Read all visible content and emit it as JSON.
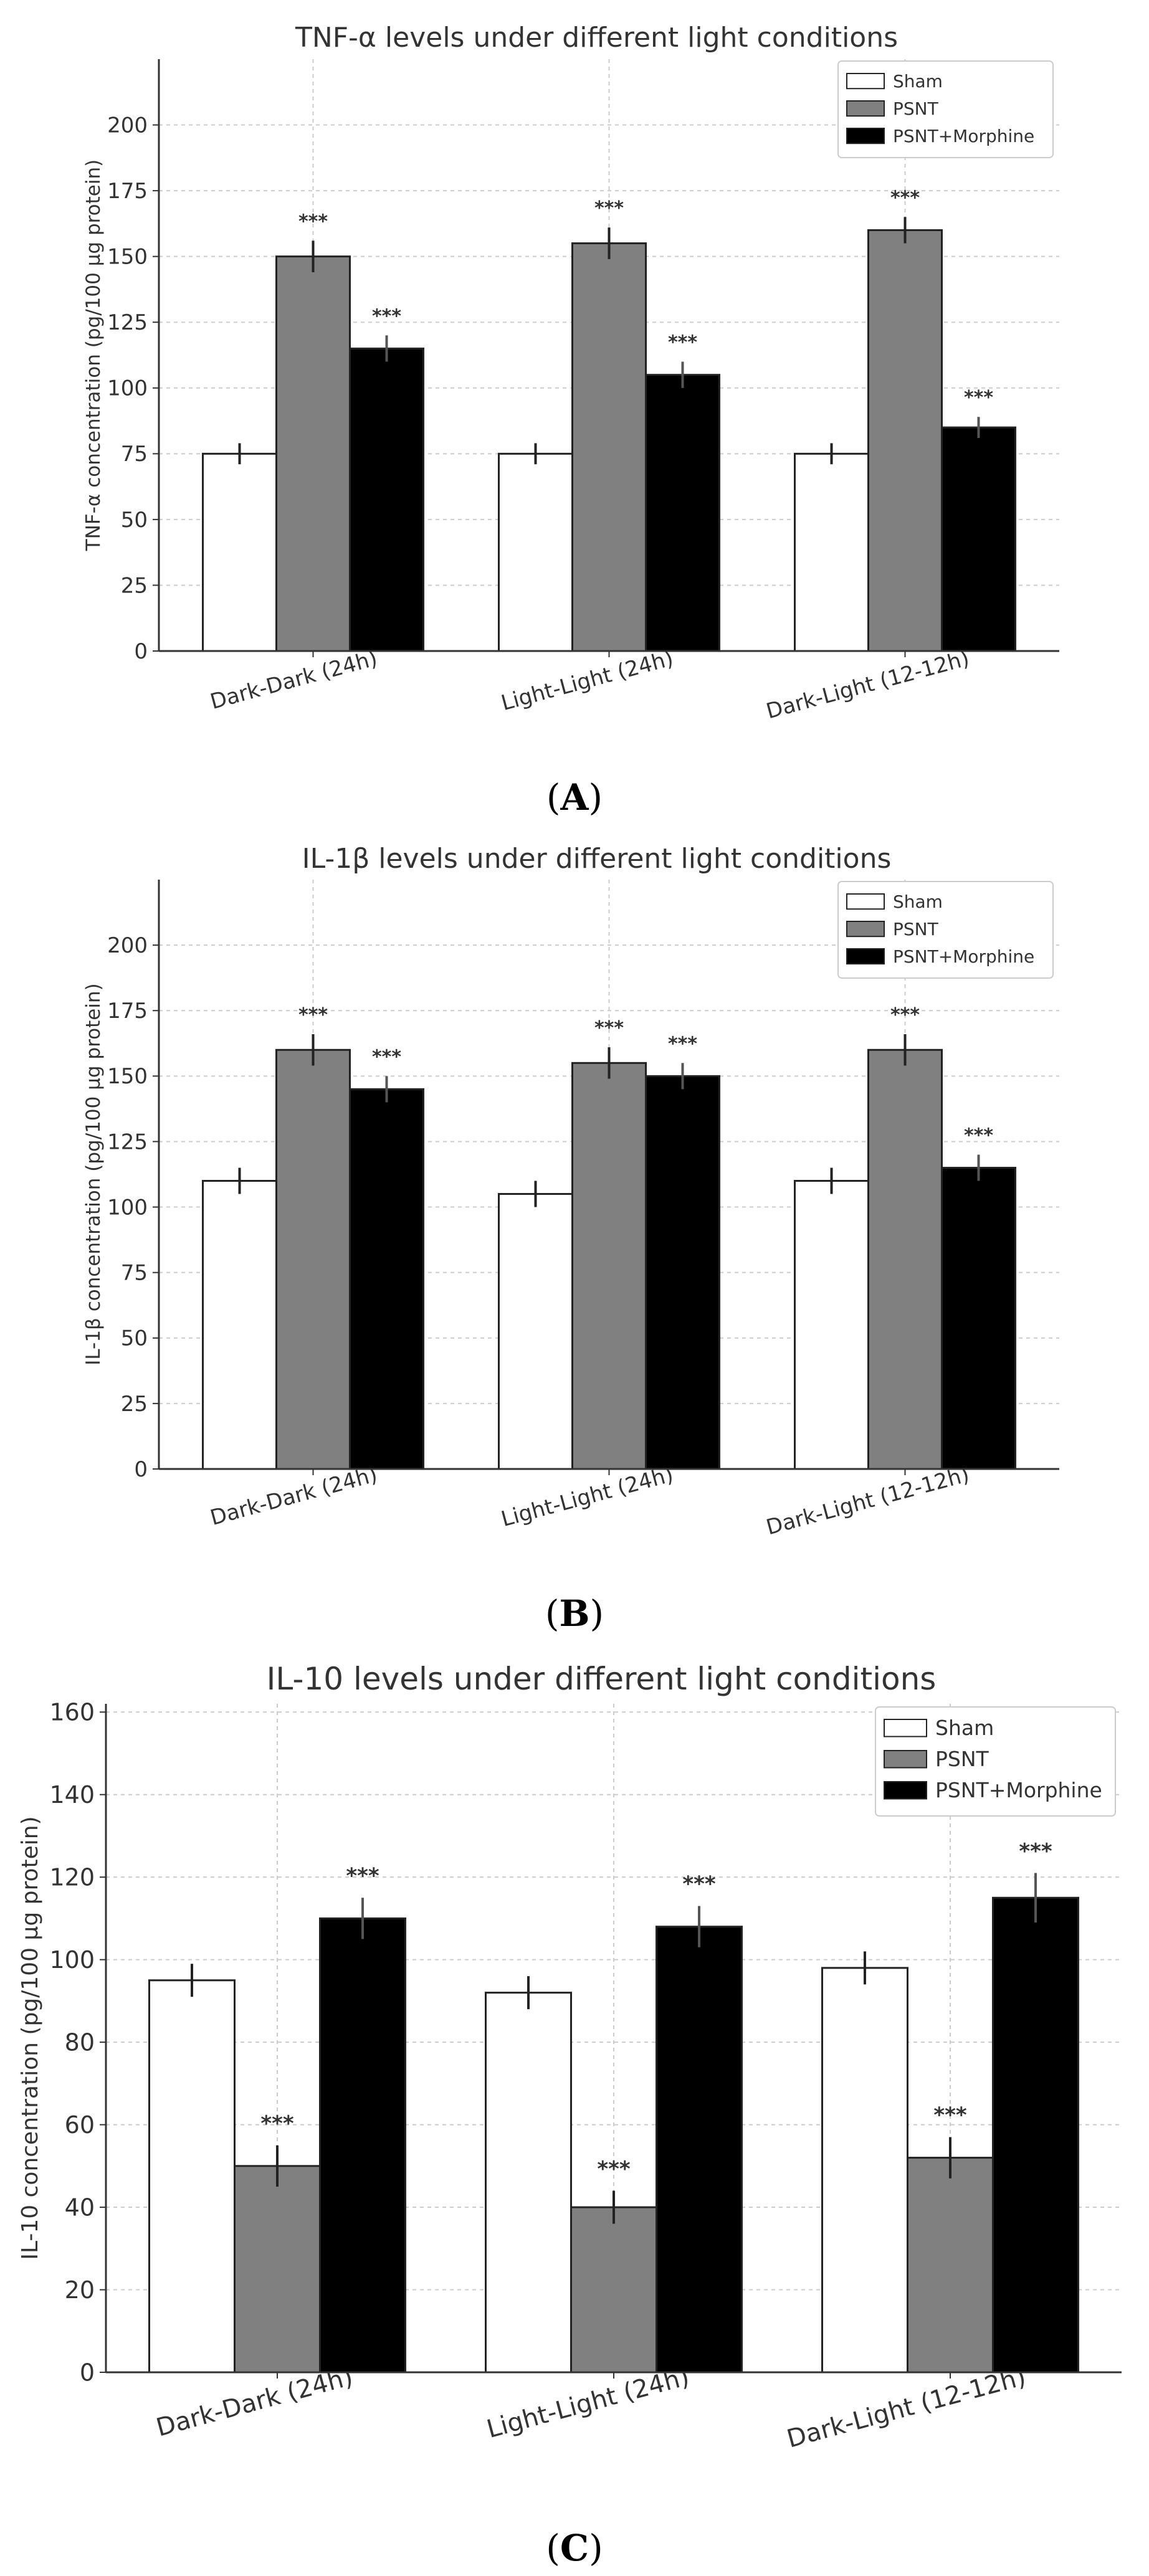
{
  "figure": {
    "panel_labels": [
      "A",
      "B",
      "C"
    ]
  },
  "colors": {
    "sham": "#ffffff",
    "psnt": "#808080",
    "psnt_morphine": "#000000",
    "axis": "#333333",
    "grid": "#cccccc",
    "text": "#333333"
  },
  "chart_data": [
    {
      "type": "bar",
      "panel": "A",
      "title": "TNF-α levels under different light conditions",
      "xlabel": "",
      "ylabel": "TNF-α concentration (pg/100 µg protein)",
      "ylim": [
        0,
        225
      ],
      "yticks": [
        0,
        25,
        50,
        75,
        100,
        125,
        150,
        175,
        200
      ],
      "grid": true,
      "legend": "top-right",
      "categories": [
        "Dark-Dark (24h)",
        "Light-Light (24h)",
        "Dark-Light (12-12h)"
      ],
      "series": [
        {
          "name": "Sham",
          "color": "#ffffff",
          "values": [
            75,
            75,
            75
          ],
          "errors": [
            4,
            4,
            4
          ],
          "labels": [
            "",
            "",
            ""
          ]
        },
        {
          "name": "PSNT",
          "color": "#808080",
          "values": [
            150,
            155,
            160
          ],
          "errors": [
            6,
            6,
            5
          ],
          "labels": [
            "***",
            "***",
            "***"
          ]
        },
        {
          "name": "PSNT+Morphine",
          "color": "#000000",
          "values": [
            115,
            105,
            85
          ],
          "errors": [
            5,
            5,
            4
          ],
          "labels": [
            "***",
            "***",
            "***"
          ]
        }
      ]
    },
    {
      "type": "bar",
      "panel": "B",
      "title": "IL-1β levels under different light conditions",
      "xlabel": "",
      "ylabel": "IL-1β concentration (pg/100 µg protein)",
      "ylim": [
        0,
        225
      ],
      "yticks": [
        0,
        25,
        50,
        75,
        100,
        125,
        150,
        175,
        200
      ],
      "grid": true,
      "legend": "top-right",
      "categories": [
        "Dark-Dark (24h)",
        "Light-Light (24h)",
        "Dark-Light (12-12h)"
      ],
      "series": [
        {
          "name": "Sham",
          "color": "#ffffff",
          "values": [
            110,
            105,
            110
          ],
          "errors": [
            5,
            5,
            5
          ],
          "labels": [
            "",
            "",
            ""
          ]
        },
        {
          "name": "PSNT",
          "color": "#808080",
          "values": [
            160,
            155,
            160
          ],
          "errors": [
            6,
            6,
            6
          ],
          "labels": [
            "***",
            "***",
            "***"
          ]
        },
        {
          "name": "PSNT+Morphine",
          "color": "#000000",
          "values": [
            145,
            150,
            115
          ],
          "errors": [
            5,
            5,
            5
          ],
          "labels": [
            "***",
            "***",
            "***"
          ]
        }
      ]
    },
    {
      "type": "bar",
      "panel": "C",
      "title": "IL-10 levels under different light conditions",
      "xlabel": "",
      "ylabel": "IL-10 concentration (pg/100 µg protein)",
      "ylim": [
        0,
        162
      ],
      "yticks": [
        0,
        20,
        40,
        60,
        80,
        100,
        120,
        140,
        160
      ],
      "grid": true,
      "legend": "top-right",
      "categories": [
        "Dark-Dark (24h)",
        "Light-Light (24h)",
        "Dark-Light (12-12h)"
      ],
      "series": [
        {
          "name": "Sham",
          "color": "#ffffff",
          "values": [
            95,
            92,
            98
          ],
          "errors": [
            4,
            4,
            4
          ],
          "labels": [
            "",
            "",
            ""
          ]
        },
        {
          "name": "PSNT",
          "color": "#808080",
          "values": [
            50,
            40,
            52
          ],
          "errors": [
            5,
            4,
            5
          ],
          "labels": [
            "***",
            "***",
            "***"
          ]
        },
        {
          "name": "PSNT+Morphine",
          "color": "#000000",
          "values": [
            110,
            108,
            115
          ],
          "errors": [
            5,
            5,
            6
          ],
          "labels": [
            "***",
            "***",
            "***"
          ]
        }
      ]
    }
  ]
}
